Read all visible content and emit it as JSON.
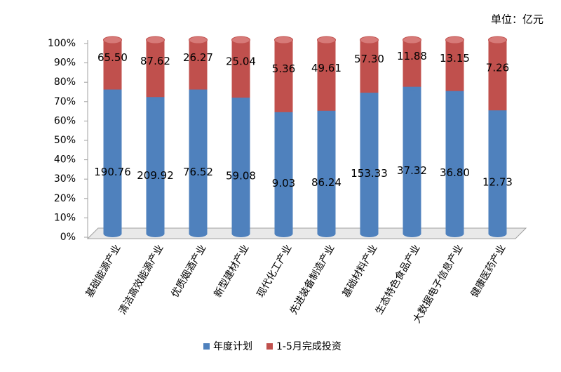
{
  "chart_data": {
    "type": "bar",
    "stacking": "percent",
    "unit_label": "单位：亿元",
    "categories": [
      "基础能源产业",
      "清洁高效能源产业",
      "优质烟酒产业",
      "新型建材产业",
      "现代化工产业",
      "先进装备制造产业",
      "基础材料产业",
      "生态特色食品产业",
      "大数据电子信息产业",
      "健康医药产业"
    ],
    "series": [
      {
        "name": "年度计划",
        "color": "#4f81bd",
        "values": [
          190.76,
          209.92,
          76.52,
          59.08,
          9.03,
          86.24,
          153.33,
          37.32,
          36.8,
          12.73
        ]
      },
      {
        "name": "1-5月完成投资",
        "color": "#c0504d",
        "values": [
          65.5,
          87.62,
          26.27,
          25.04,
          5.36,
          49.61,
          57.3,
          11.88,
          13.15,
          7.26
        ]
      }
    ],
    "value_labels": [
      [
        "190.76",
        "209.92",
        "76.52",
        "59.08",
        "9.03",
        "86.24",
        "153.33",
        "37.32",
        "36.80",
        "12.73"
      ],
      [
        "65.50",
        "87.62",
        "26.27",
        "25.04",
        "5.36",
        "49.61",
        "57.30",
        "11.88",
        "13.15",
        "7.26"
      ]
    ],
    "ylim": [
      0,
      100
    ],
    "yticks": [
      {
        "value": 0,
        "label": "0%"
      },
      {
        "value": 10,
        "label": "10%"
      },
      {
        "value": 20,
        "label": "20%"
      },
      {
        "value": 30,
        "label": "30%"
      },
      {
        "value": 40,
        "label": "40%"
      },
      {
        "value": 50,
        "label": "50%"
      },
      {
        "value": 60,
        "label": "60%"
      },
      {
        "value": 70,
        "label": "70%"
      },
      {
        "value": 80,
        "label": "80%"
      },
      {
        "value": 90,
        "label": "90%"
      },
      {
        "value": 100,
        "label": "100%"
      }
    ],
    "legend": "bottom"
  }
}
